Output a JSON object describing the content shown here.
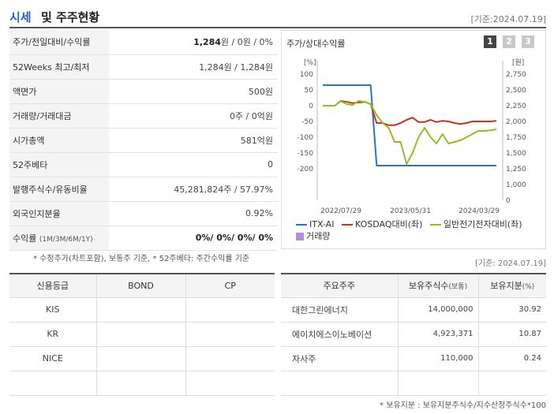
{
  "header": {
    "title_accent": "시세",
    "title_rest": "및 주주현황",
    "date": "[기준:2024.07.19]"
  },
  "price_table": [
    {
      "label": "주가/전일대비/수익률",
      "value_bold": "1,284",
      "value_rest": "원 / 0원 / 0%"
    },
    {
      "label": "52Weeks 최고/최저",
      "value": "1,284원 / 1,284원"
    },
    {
      "label": "액면가",
      "value": "500원"
    },
    {
      "label": "거래량/거래대금",
      "value": "0주 / 0억원"
    },
    {
      "label": "시가총액",
      "value": "581억원"
    },
    {
      "label": "52주베타",
      "value": "0"
    },
    {
      "label": "발행주식수/유동비율",
      "value": "45,281,824주 / 57.97%"
    },
    {
      "label": "외국인지분율",
      "value": "0.92%"
    },
    {
      "label": "수익률",
      "label_small": "(1M/3M/6M/1Y)",
      "value_bold": "0%/ 0%/ 0%/ 0%"
    }
  ],
  "price_note": "* 수정주가(차트포함), 보통주 기준, * 52주베타: 주간수익률 기준",
  "chart_panel": {
    "title": "주가/상대수익률",
    "pages": [
      "1",
      "2",
      "3"
    ]
  },
  "chart_data": {
    "type": "line",
    "left_unit": "[%]",
    "right_unit": "[원]",
    "left_ticks": [
      "100",
      "50",
      "0",
      "-50",
      "-100",
      "-150",
      "-200"
    ],
    "right_ticks": [
      "2,750",
      "2,500",
      "2,250",
      "2,000",
      "1,750",
      "1,500",
      "1,250",
      "1,000",
      "0"
    ],
    "ylim_left": [
      -200,
      100
    ],
    "x_ticks": [
      "2022/07/29",
      "2023/05/31",
      "2024/03/29"
    ],
    "series": [
      {
        "name": "ITX-AI",
        "color": "#2f6fd1",
        "axis": "left",
        "values": [
          65,
          65,
          65,
          65,
          65,
          65,
          65,
          65,
          65,
          -190,
          -190,
          -190,
          -190,
          -190,
          -190,
          -190,
          -190,
          -190,
          -190,
          -190,
          -190,
          -190,
          -190,
          -190,
          -190,
          -190,
          -190,
          -190,
          -190,
          -190
        ]
      },
      {
        "name": "KOSDAQ대비(좌)",
        "color": "#c8321e",
        "axis": "left",
        "values": [
          0,
          0,
          0,
          15,
          12,
          8,
          10,
          12,
          5,
          -55,
          -55,
          -62,
          -62,
          -55,
          -45,
          -38,
          -52,
          -52,
          -45,
          -52,
          -48,
          -50,
          -55,
          -58,
          -55,
          -50,
          -50,
          -50,
          -50,
          -48
        ]
      },
      {
        "name": "일반전기전자대비(좌)",
        "color": "#8ec120",
        "axis": "left",
        "values": [
          0,
          0,
          0,
          14,
          5,
          2,
          15,
          12,
          5,
          -30,
          -55,
          -70,
          -115,
          -115,
          -185,
          -150,
          -100,
          -70,
          -100,
          -120,
          -90,
          -120,
          -115,
          -110,
          -100,
          -90,
          -80,
          -80,
          -78,
          -75
        ]
      }
    ],
    "volume_legend": "거래량",
    "volume_color": "#b48ede"
  },
  "date2": "[기준: 2024.07.19]",
  "credit_table": {
    "headers": [
      "신용등급",
      "BOND",
      "CP"
    ],
    "rows": [
      [
        "KIS",
        "",
        ""
      ],
      [
        "KR",
        "",
        ""
      ],
      [
        "NICE",
        "",
        ""
      ],
      [
        "",
        "",
        ""
      ]
    ]
  },
  "share_table": {
    "headers": [
      "주요주주",
      "보유주식수",
      "(보통)",
      "보유지분",
      "(%)"
    ],
    "rows": [
      [
        "대한그린에너지",
        "14,000,000",
        "30.92"
      ],
      [
        "에이치에스이노베이션",
        "4,923,371",
        "10.87"
      ],
      [
        "자사주",
        "110,000",
        "0.24"
      ],
      [
        "",
        "",
        ""
      ]
    ]
  },
  "share_note": "* 보유지분 : 보유지분주식수/지수산정주식수*100"
}
